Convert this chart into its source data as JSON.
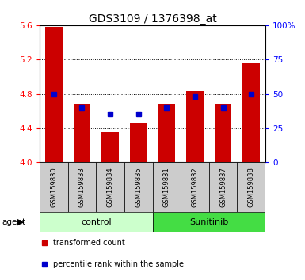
{
  "title": "GDS3109 / 1376398_at",
  "samples": [
    "GSM159830",
    "GSM159833",
    "GSM159834",
    "GSM159835",
    "GSM159831",
    "GSM159832",
    "GSM159837",
    "GSM159838"
  ],
  "red_values": [
    5.58,
    4.68,
    4.35,
    4.45,
    4.68,
    4.83,
    4.68,
    5.16
  ],
  "blue_pct": [
    50,
    40,
    35,
    35,
    40,
    48,
    40,
    50
  ],
  "y_min": 4.0,
  "y_max": 5.6,
  "y_ticks": [
    4.0,
    4.4,
    4.8,
    5.2,
    5.6
  ],
  "y2_ticks": [
    0,
    25,
    50,
    75,
    100
  ],
  "y2_labels": [
    "0",
    "25",
    "50",
    "75",
    "100%"
  ],
  "control_count": 4,
  "sunitinib_count": 4,
  "control_label": "control",
  "sunitinib_label": "Sunitinib",
  "agent_label": "agent",
  "bar_color": "#cc0000",
  "dot_color": "#0000cc",
  "control_bg": "#ccffcc",
  "sunitinib_bg": "#44dd44",
  "tick_label_bg": "#cccccc",
  "legend_red": "transformed count",
  "legend_blue": "percentile rank within the sample",
  "title_fontsize": 10,
  "tick_fontsize": 7.5,
  "sample_fontsize": 6,
  "group_fontsize": 8
}
